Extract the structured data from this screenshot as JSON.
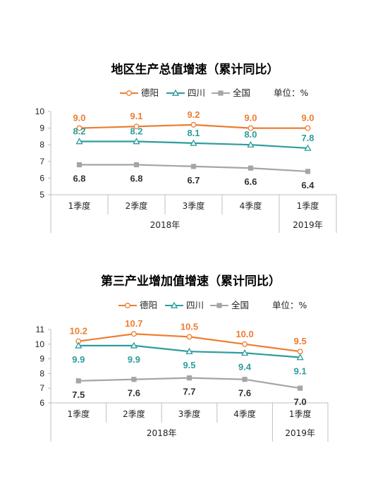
{
  "chart_data": [
    {
      "type": "line",
      "title": "地区生产总值增速（累计同比）",
      "unit_label": "单位：%",
      "categories": [
        "1季度",
        "2季度",
        "3季度",
        "4季度",
        "1季度"
      ],
      "year_groups": [
        {
          "label": "2018年",
          "span": 4
        },
        {
          "label": "2019年",
          "span": 1
        }
      ],
      "ylim": [
        5,
        10
      ],
      "yticks": [
        5,
        6,
        7,
        8,
        9,
        10
      ],
      "series": [
        {
          "name": "德阳",
          "color": "#ED7D31",
          "marker": "circle",
          "values": [
            9.0,
            9.1,
            9.2,
            9.0,
            9.0
          ],
          "labels": [
            "9.0",
            "9.1",
            "9.2",
            "9.0",
            "9.0"
          ]
        },
        {
          "name": "四川",
          "color": "#2E9C9C",
          "marker": "triangle",
          "values": [
            8.2,
            8.2,
            8.1,
            8.0,
            7.8
          ],
          "labels": [
            "8.2",
            "8.2",
            "8.1",
            "8.0",
            "7.8"
          ]
        },
        {
          "name": "全国",
          "color": "#A5A5A5",
          "label_color": "#333333",
          "marker": "square",
          "values": [
            6.8,
            6.8,
            6.7,
            6.6,
            6.4
          ],
          "labels": [
            "6.8",
            "6.8",
            "6.7",
            "6.6",
            "6.4"
          ]
        }
      ]
    },
    {
      "type": "line",
      "title": "第三产业增加值增速（累计同比）",
      "unit_label": "单位：%",
      "categories": [
        "1季度",
        "2季度",
        "3季度",
        "4季度",
        "1季度"
      ],
      "year_groups": [
        {
          "label": "2018年",
          "span": 4
        },
        {
          "label": "2019年",
          "span": 1
        }
      ],
      "ylim": [
        6,
        11
      ],
      "yticks": [
        6,
        7,
        8,
        9,
        10,
        11
      ],
      "series": [
        {
          "name": "德阳",
          "color": "#ED7D31",
          "marker": "circle",
          "values": [
            10.2,
            10.7,
            10.5,
            10.0,
            9.5
          ],
          "labels": [
            "10.2",
            "10.7",
            "10.5",
            "10.0",
            "9.5"
          ]
        },
        {
          "name": "四川",
          "color": "#2E9C9C",
          "marker": "triangle",
          "values": [
            9.9,
            9.9,
            9.5,
            9.4,
            9.1
          ],
          "labels": [
            "9.9",
            "9.9",
            "9.5",
            "9.4",
            "9.1"
          ]
        },
        {
          "name": "全国",
          "color": "#A5A5A5",
          "label_color": "#333333",
          "marker": "square",
          "values": [
            7.5,
            7.6,
            7.7,
            7.6,
            7.0
          ],
          "labels": [
            "7.5",
            "7.6",
            "7.7",
            "7.6",
            "7.0"
          ]
        }
      ]
    }
  ]
}
